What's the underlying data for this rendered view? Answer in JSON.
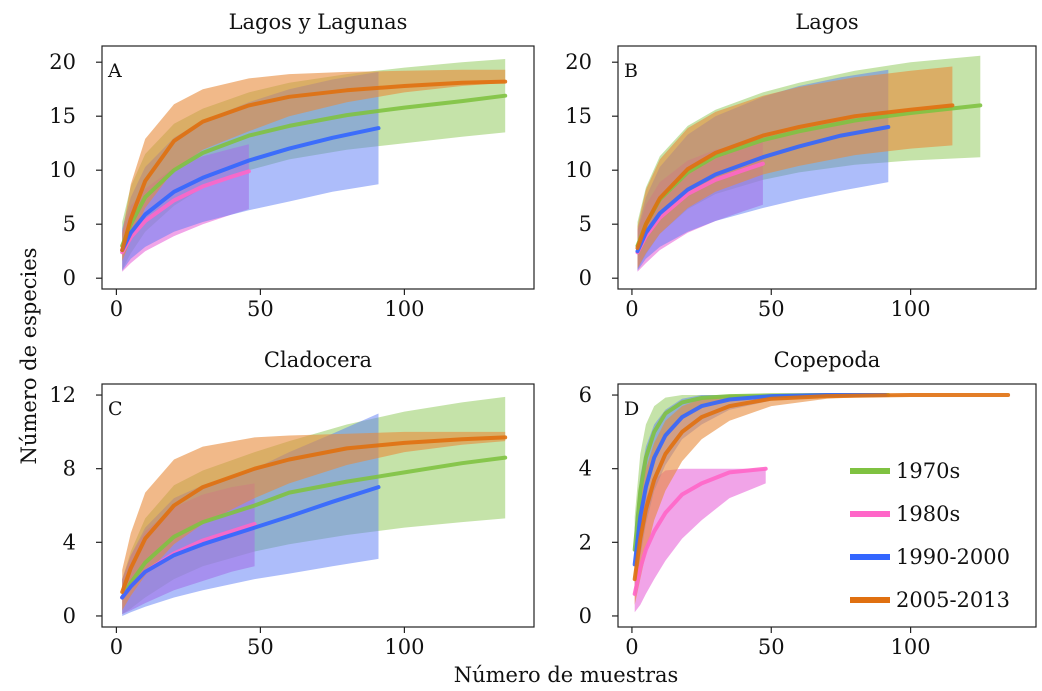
{
  "figure": {
    "xlabel": "Número de muestras",
    "ylabel": "Número de especies"
  },
  "legend": [
    {
      "label": "1970s",
      "color": "#7fc241"
    },
    {
      "label": "1980s",
      "color": "#ff66c8"
    },
    {
      "label": "1990-2000",
      "color": "#3366ff"
    },
    {
      "label": "2005-2013",
      "color": "#e07010"
    }
  ],
  "chart_data": [
    {
      "type": "line",
      "letter": "A",
      "title": "Lagos y Lagunas",
      "xlim": [
        -5,
        145
      ],
      "ylim": [
        -1,
        21.5
      ],
      "xticks": [
        0,
        50,
        100
      ],
      "yticks": [
        0,
        5,
        10,
        15,
        20
      ],
      "series": [
        {
          "name": "1970s",
          "color": "#7fc241",
          "band_color": "#7fc241",
          "opacity": 0.45,
          "x": [
            2,
            5,
            10,
            20,
            30,
            46,
            60,
            80,
            100,
            120,
            135
          ],
          "y": [
            3,
            5,
            7.5,
            10,
            11.6,
            13.2,
            14.1,
            15.1,
            15.8,
            16.4,
            16.9
          ],
          "lower": [
            0.8,
            2.3,
            4.3,
            6.7,
            8.4,
            10.0,
            11.0,
            11.9,
            12.5,
            13.1,
            13.5
          ],
          "upper": [
            5.2,
            8.5,
            11.5,
            14.3,
            15.7,
            17.2,
            18.1,
            18.9,
            19.5,
            20.0,
            20.3
          ]
        },
        {
          "name": "1980s",
          "color": "#ff66c8",
          "band_color": "#e868d8",
          "opacity": 0.6,
          "x": [
            2,
            5,
            10,
            20,
            30,
            40,
            46
          ],
          "y": [
            2.4,
            3.8,
            5.3,
            7.2,
            8.5,
            9.4,
            9.9
          ],
          "lower": [
            0.6,
            1.4,
            2.5,
            3.9,
            5.0,
            5.9,
            6.4
          ],
          "upper": [
            4.4,
            6.7,
            8.3,
            10.2,
            11.3,
            12.0,
            12.4
          ]
        },
        {
          "name": "1990-2000",
          "color": "#3366ff",
          "band_color": "#5c7cf5",
          "opacity": 0.5,
          "x": [
            2,
            5,
            10,
            20,
            30,
            46,
            60,
            75,
            91
          ],
          "y": [
            2.6,
            4.2,
            5.9,
            8.0,
            9.3,
            10.9,
            12.0,
            13.0,
            13.9
          ],
          "lower": [
            0.7,
            1.8,
            2.9,
            4.3,
            5.2,
            6.3,
            7.1,
            8.0,
            8.7
          ],
          "upper": [
            4.6,
            7.5,
            10.3,
            13.0,
            14.6,
            16.3,
            17.5,
            18.4,
            19.1
          ]
        },
        {
          "name": "2005-2013",
          "color": "#e07010",
          "band_color": "#e88a3a",
          "opacity": 0.6,
          "x": [
            2,
            5,
            10,
            20,
            30,
            46,
            60,
            80,
            100,
            120,
            135
          ],
          "y": [
            2.6,
            5.5,
            9.0,
            12.7,
            14.5,
            16.0,
            16.8,
            17.4,
            17.8,
            18.1,
            18.2
          ],
          "lower": [
            1.6,
            3.5,
            6.5,
            10.0,
            11.9,
            13.6,
            15.0,
            16.3,
            17.2,
            17.8,
            18.1
          ],
          "upper": [
            4.1,
            8.7,
            12.9,
            16.1,
            17.5,
            18.5,
            18.9,
            19.1,
            19.2,
            19.3,
            19.3
          ]
        }
      ]
    },
    {
      "type": "line",
      "letter": "B",
      "title": "Lagos",
      "xlim": [
        -5,
        145
      ],
      "ylim": [
        -1,
        21.5
      ],
      "xticks": [
        0,
        50,
        100
      ],
      "yticks": [
        0,
        5,
        10,
        15,
        20
      ],
      "series": [
        {
          "name": "1970s",
          "color": "#7fc241",
          "band_color": "#7fc241",
          "opacity": 0.45,
          "x": [
            2,
            5,
            10,
            20,
            30,
            47,
            60,
            80,
            100,
            125
          ],
          "y": [
            3,
            5,
            7.3,
            9.8,
            11.3,
            12.8,
            13.6,
            14.6,
            15.3,
            16.0
          ],
          "lower": [
            0.8,
            2.2,
            4.1,
            6.4,
            7.8,
            9.1,
            9.8,
            10.5,
            10.9,
            11.2
          ],
          "upper": [
            5.2,
            8.4,
            11.3,
            14.1,
            15.6,
            17.2,
            18.1,
            19.2,
            20.0,
            20.6
          ]
        },
        {
          "name": "1980s",
          "color": "#ff66c8",
          "band_color": "#e868d8",
          "opacity": 0.6,
          "x": [
            2,
            5,
            10,
            20,
            30,
            40,
            47
          ],
          "y": [
            2.4,
            3.9,
            5.6,
            7.8,
            9.1,
            10.0,
            10.6
          ],
          "lower": [
            0.6,
            1.4,
            2.6,
            4.2,
            5.3,
            6.2,
            6.8
          ],
          "upper": [
            4.4,
            6.8,
            8.9,
            10.9,
            11.9,
            12.4,
            12.7
          ]
        },
        {
          "name": "1990-2000",
          "color": "#3366ff",
          "band_color": "#5c7cf5",
          "opacity": 0.5,
          "x": [
            2,
            5,
            10,
            20,
            30,
            47,
            60,
            75,
            92
          ],
          "y": [
            2.5,
            4.2,
            6.0,
            8.2,
            9.6,
            11.2,
            12.2,
            13.2,
            14.0
          ],
          "lower": [
            0.7,
            1.8,
            2.9,
            4.3,
            5.3,
            6.5,
            7.3,
            8.1,
            8.9
          ],
          "upper": [
            4.5,
            7.5,
            10.3,
            13.3,
            15.0,
            16.8,
            17.8,
            18.6,
            19.3
          ]
        },
        {
          "name": "2005-2013",
          "color": "#e07010",
          "band_color": "#e88a3a",
          "opacity": 0.6,
          "x": [
            2,
            5,
            10,
            20,
            30,
            47,
            60,
            80,
            100,
            115
          ],
          "y": [
            2.8,
            5.0,
            7.4,
            10.1,
            11.6,
            13.2,
            14.0,
            15.0,
            15.6,
            16.0
          ],
          "lower": [
            0.9,
            2.3,
            4.1,
            6.5,
            8.0,
            9.6,
            10.4,
            11.4,
            12.0,
            12.3
          ],
          "upper": [
            4.8,
            8.2,
            11.0,
            13.9,
            15.4,
            16.9,
            17.7,
            18.6,
            19.2,
            19.6
          ]
        }
      ]
    },
    {
      "type": "line",
      "letter": "C",
      "title": "Cladocera",
      "xlim": [
        -5,
        145
      ],
      "ylim": [
        -0.6,
        12.6
      ],
      "xticks": [
        0,
        50,
        100
      ],
      "yticks": [
        0,
        4,
        8,
        12
      ],
      "series": [
        {
          "name": "1970s",
          "color": "#7fc241",
          "band_color": "#7fc241",
          "opacity": 0.45,
          "x": [
            2,
            5,
            10,
            20,
            30,
            48,
            60,
            80,
            100,
            120,
            135
          ],
          "y": [
            1.0,
            1.8,
            2.9,
            4.3,
            5.1,
            6.0,
            6.7,
            7.3,
            7.8,
            8.3,
            8.6
          ],
          "lower": [
            0.1,
            0.4,
            1.0,
            2.0,
            2.7,
            3.5,
            3.9,
            4.4,
            4.8,
            5.1,
            5.3
          ],
          "upper": [
            2.0,
            3.5,
            5.3,
            7.1,
            7.9,
            8.9,
            9.5,
            10.4,
            11.1,
            11.6,
            11.9
          ]
        },
        {
          "name": "1980s",
          "color": "#ff66c8",
          "band_color": "#e868d8",
          "opacity": 0.6,
          "x": [
            2,
            5,
            10,
            20,
            30,
            40,
            48
          ],
          "y": [
            1.0,
            1.6,
            2.4,
            3.4,
            4.1,
            4.6,
            5.0
          ],
          "lower": [
            0.1,
            0.3,
            0.7,
            1.4,
            1.9,
            2.4,
            2.7
          ],
          "upper": [
            2.0,
            3.3,
            4.6,
            5.9,
            6.6,
            7.0,
            7.2
          ]
        },
        {
          "name": "1990-2000",
          "color": "#3366ff",
          "band_color": "#5c7cf5",
          "opacity": 0.5,
          "x": [
            2,
            5,
            10,
            20,
            30,
            48,
            60,
            75,
            91
          ],
          "y": [
            1.0,
            1.6,
            2.4,
            3.3,
            3.9,
            4.8,
            5.4,
            6.2,
            7.0
          ],
          "lower": [
            0,
            0.2,
            0.5,
            1.0,
            1.4,
            2.0,
            2.3,
            2.7,
            3.1
          ],
          "upper": [
            2.0,
            3.3,
            4.8,
            6.4,
            7.1,
            8.0,
            8.9,
            9.9,
            11.0
          ]
        },
        {
          "name": "2005-2013",
          "color": "#e07010",
          "band_color": "#e88a3a",
          "opacity": 0.6,
          "x": [
            2,
            5,
            10,
            20,
            30,
            48,
            60,
            80,
            100,
            120,
            135
          ],
          "y": [
            1.3,
            2.6,
            4.2,
            6.0,
            7.0,
            8.0,
            8.5,
            9.1,
            9.4,
            9.6,
            9.7
          ],
          "lower": [
            0.3,
            1.1,
            2.2,
            3.9,
            5.0,
            6.4,
            7.2,
            8.2,
            8.9,
            9.3,
            9.5
          ],
          "upper": [
            2.5,
            4.5,
            6.7,
            8.5,
            9.2,
            9.7,
            9.8,
            9.9,
            10.0,
            10.0,
            10.0
          ]
        }
      ]
    },
    {
      "type": "line",
      "letter": "D",
      "title": "Copepoda",
      "xlim": [
        -5,
        145
      ],
      "ylim": [
        -0.3,
        6.3
      ],
      "xticks": [
        0,
        50,
        100
      ],
      "yticks": [
        0,
        2,
        4,
        6
      ],
      "series": [
        {
          "name": "1970s",
          "color": "#7fc241",
          "band_color": "#7fc241",
          "opacity": 0.45,
          "x": [
            1,
            3,
            5,
            8,
            12,
            18,
            25,
            35,
            50,
            70,
            92
          ],
          "y": [
            1.8,
            3.4,
            4.3,
            5.0,
            5.5,
            5.8,
            5.92,
            5.97,
            5.99,
            6.0,
            6.0
          ],
          "lower": [
            0.9,
            2.3,
            3.3,
            4.2,
            4.9,
            5.4,
            5.7,
            5.85,
            5.95,
            5.99,
            6.0
          ],
          "upper": [
            2.7,
            4.4,
            5.2,
            5.7,
            5.93,
            6.0,
            6.0,
            6.0,
            6.0,
            6.0,
            6.0
          ]
        },
        {
          "name": "1980s",
          "color": "#ff66c8",
          "band_color": "#e868d8",
          "opacity": 0.6,
          "x": [
            1,
            3,
            5,
            8,
            12,
            18,
            25,
            35,
            48
          ],
          "y": [
            0.6,
            1.3,
            1.8,
            2.3,
            2.8,
            3.3,
            3.6,
            3.9,
            4.0
          ],
          "lower": [
            0.1,
            0.3,
            0.6,
            1.0,
            1.5,
            2.1,
            2.6,
            3.2,
            3.6
          ],
          "upper": [
            1.5,
            2.6,
            3.2,
            3.7,
            3.95,
            4.0,
            4.0,
            4.0,
            4.0
          ]
        },
        {
          "name": "1990-2000",
          "color": "#3366ff",
          "band_color": "#5c7cf5",
          "opacity": 0.5,
          "x": [
            1,
            3,
            5,
            8,
            12,
            18,
            25,
            35,
            50,
            70,
            91
          ],
          "y": [
            1.4,
            2.7,
            3.5,
            4.3,
            4.9,
            5.4,
            5.7,
            5.88,
            5.97,
            6.0,
            6.0
          ],
          "lower": [
            0.5,
            1.6,
            2.5,
            3.4,
            4.1,
            4.8,
            5.2,
            5.6,
            5.85,
            5.95,
            6.0
          ],
          "upper": [
            2.4,
            3.8,
            4.6,
            5.2,
            5.6,
            5.9,
            6.0,
            6.0,
            6.0,
            6.0,
            6.0
          ]
        },
        {
          "name": "2005-2013",
          "color": "#e07010",
          "band_color": "#e88a3a",
          "opacity": 0.6,
          "x": [
            1,
            3,
            5,
            8,
            12,
            18,
            25,
            35,
            50,
            70,
            100,
            135
          ],
          "y": [
            1.0,
            2.1,
            2.9,
            3.7,
            4.4,
            5.0,
            5.4,
            5.7,
            5.9,
            5.97,
            6.0,
            6.0
          ],
          "lower": [
            0.3,
            1.0,
            1.7,
            2.6,
            3.4,
            4.2,
            4.8,
            5.3,
            5.7,
            5.9,
            6.0,
            6.0
          ],
          "upper": [
            1.8,
            3.2,
            4.0,
            4.7,
            5.3,
            5.7,
            5.9,
            6.0,
            6.0,
            6.0,
            6.0,
            6.0
          ]
        }
      ]
    }
  ]
}
